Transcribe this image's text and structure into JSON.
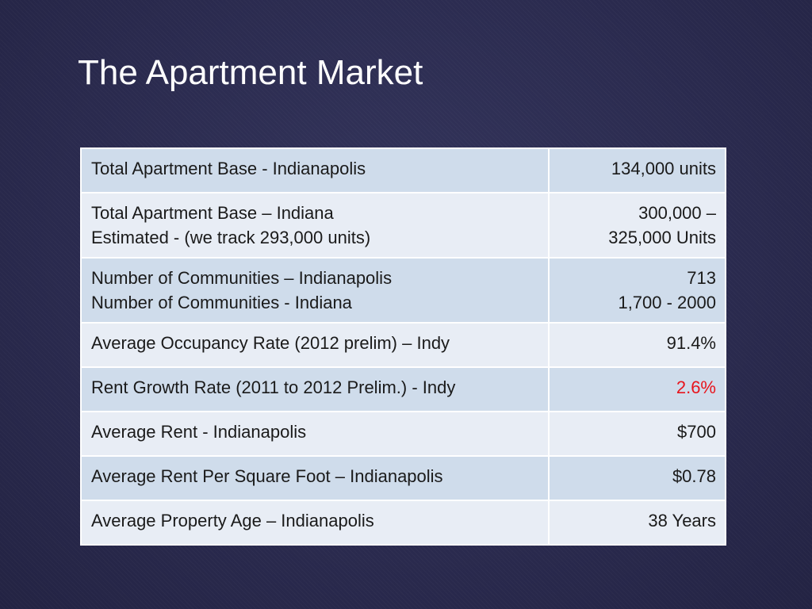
{
  "slide": {
    "title": "The Apartment Market"
  },
  "colors": {
    "highlight": "#e8141c"
  },
  "table": {
    "rows": [
      {
        "label": [
          "Total Apartment Base - Indianapolis"
        ],
        "value": [
          "134,000 units"
        ]
      },
      {
        "label": [
          "Total Apartment Base – Indiana",
          "Estimated - (we track 293,000 units)"
        ],
        "value": [
          "300,000 –",
          "325,000 Units"
        ]
      },
      {
        "label": [
          "Number of Communities – Indianapolis",
          "Number of Communities - Indiana"
        ],
        "value": [
          "713",
          "1,700 - 2000"
        ]
      },
      {
        "label": [
          "Average Occupancy Rate (2012 prelim) – Indy"
        ],
        "value": [
          "91.4%"
        ]
      },
      {
        "label": [
          "Rent Growth Rate (2011 to 2012 Prelim.) - Indy"
        ],
        "value": [
          "2.6%"
        ]
      },
      {
        "label": [
          "Average Rent - Indianapolis"
        ],
        "value": [
          "$700"
        ]
      },
      {
        "label": [
          "Average Rent Per Square Foot – Indianapolis"
        ],
        "value": [
          "$0.78"
        ]
      },
      {
        "label": [
          "Average Property Age – Indianapolis"
        ],
        "value": [
          "38 Years"
        ]
      }
    ]
  }
}
